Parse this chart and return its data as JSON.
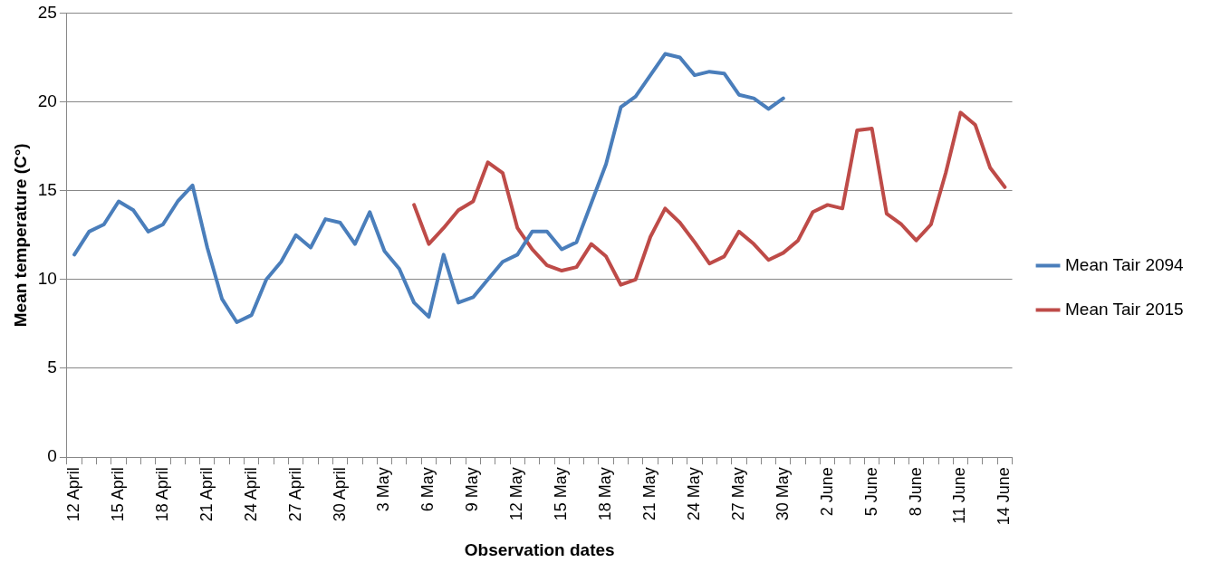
{
  "chart_data": {
    "type": "line",
    "xlabel": "Observation dates",
    "ylabel": "Mean temperature (C°)",
    "categories": [
      "12 April",
      null,
      null,
      "15 April",
      null,
      null,
      "18 April",
      null,
      null,
      "21 April",
      null,
      null,
      "24 April",
      null,
      null,
      "27 April",
      null,
      null,
      "30 April",
      null,
      null,
      "3 May",
      null,
      null,
      "6 May",
      null,
      null,
      "9 May",
      null,
      null,
      "12 May",
      null,
      null,
      "15 May",
      null,
      null,
      "18 May",
      null,
      null,
      "21 May",
      null,
      null,
      "24 May",
      null,
      null,
      "27 May",
      null,
      null,
      "30 May",
      null,
      null,
      "2 June",
      null,
      null,
      "5 June",
      null,
      null,
      "8 June",
      null,
      null,
      "11 June",
      null,
      null,
      "14 June"
    ],
    "series": [
      {
        "name": "Mean Tair 2094",
        "color": "#4a7ebb",
        "values": [
          11.4,
          12.7,
          13.1,
          14.4,
          13.9,
          12.7,
          13.1,
          14.4,
          15.3,
          11.8,
          8.9,
          7.6,
          8.0,
          10.0,
          11.0,
          12.5,
          11.8,
          13.4,
          13.2,
          12.0,
          13.8,
          11.6,
          10.6,
          8.7,
          7.9,
          11.4,
          8.7,
          9.0,
          10.0,
          11.0,
          11.4,
          12.7,
          12.7,
          11.7,
          12.1,
          14.3,
          16.5,
          19.7,
          20.3,
          21.5,
          22.7,
          22.5,
          21.5,
          21.7,
          21.6,
          20.4,
          20.2,
          19.6,
          20.2,
          null,
          null,
          null,
          null,
          null,
          null,
          null,
          null,
          null,
          null,
          null,
          null,
          null,
          null,
          null
        ]
      },
      {
        "name": "Mean Tair 2015",
        "color": "#be4b48",
        "values": [
          null,
          null,
          null,
          null,
          null,
          null,
          null,
          null,
          null,
          null,
          null,
          null,
          null,
          null,
          null,
          null,
          null,
          null,
          null,
          null,
          null,
          null,
          null,
          14.2,
          12.0,
          12.9,
          13.9,
          14.4,
          16.6,
          16.0,
          12.9,
          11.7,
          10.8,
          10.5,
          10.7,
          12.0,
          11.3,
          9.7,
          10.0,
          12.4,
          14.0,
          13.2,
          12.1,
          10.9,
          11.3,
          12.7,
          12.0,
          11.1,
          11.5,
          12.2,
          13.8,
          14.2,
          14.0,
          18.4,
          18.5,
          13.7,
          13.1,
          12.2,
          13.1,
          16.0,
          19.4,
          18.7,
          16.3,
          15.2
        ]
      }
    ],
    "ylim": [
      0,
      25
    ],
    "yticks": [
      0,
      5,
      10,
      15,
      20,
      25
    ],
    "grid": "y",
    "legend": "right",
    "marker": "none",
    "line_style": "solid"
  }
}
